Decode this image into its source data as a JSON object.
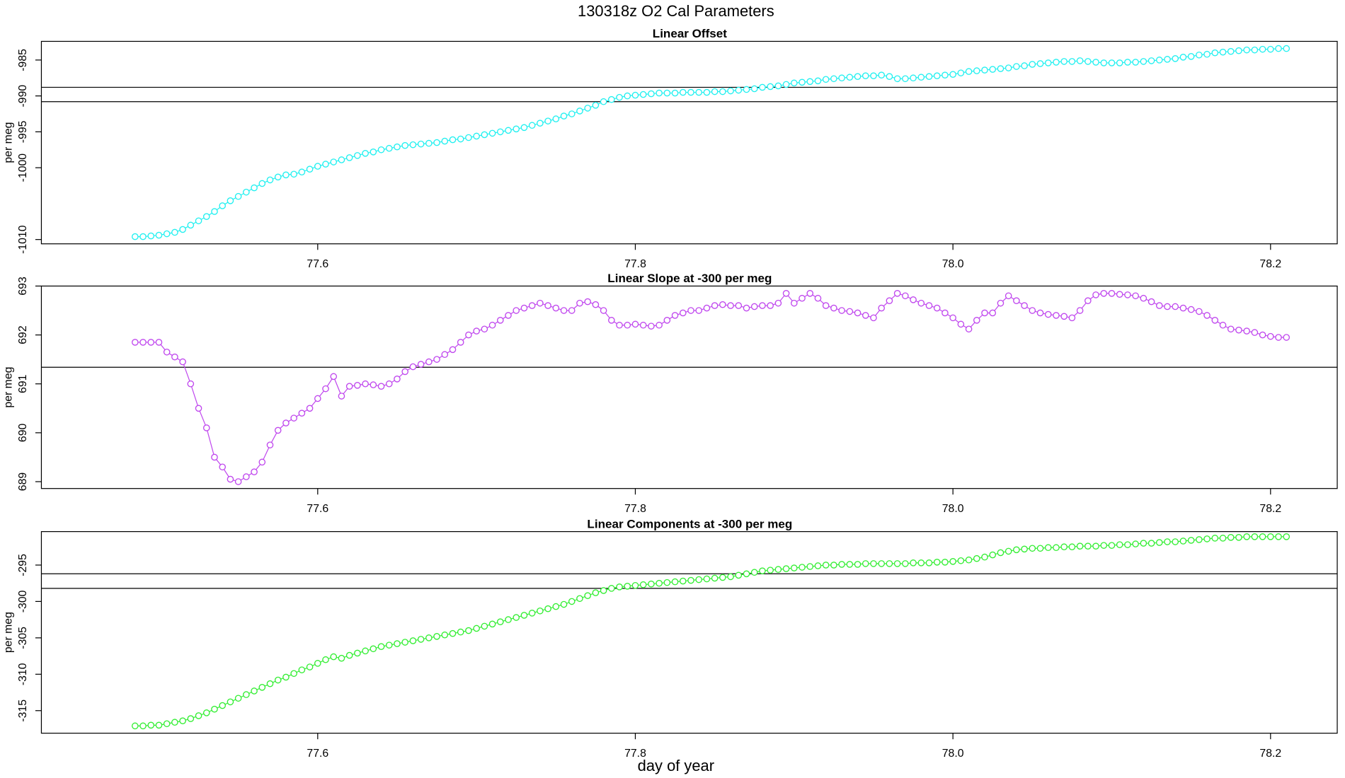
{
  "title": "130318z   O2 Cal Parameters",
  "xlabel": "day of year",
  "chart_data": [
    {
      "type": "scatter",
      "title": "Linear Offset",
      "ylabel": "per meg",
      "color": "#22f0f0",
      "xlim": [
        77.426,
        78.242
      ],
      "xticks": [
        77.6,
        77.8,
        {
          "value": 78,
          "label": "78.0"
        },
        78.2
      ],
      "ylim": [
        -1010.6,
        -982.4
      ],
      "yticks": [
        -985,
        -990,
        -995,
        -1000,
        -1010
      ],
      "hlines": [
        -988.8,
        -990.8
      ],
      "x": [
        77.485,
        77.49,
        77.495,
        77.5,
        77.505,
        77.51,
        77.515,
        77.52,
        77.525,
        77.53,
        77.535,
        77.54,
        77.545,
        77.55,
        77.555,
        77.56,
        77.565,
        77.57,
        77.575,
        77.58,
        77.585,
        77.59,
        77.595,
        77.6,
        77.605,
        77.61,
        77.615,
        77.62,
        77.625,
        77.63,
        77.635,
        77.64,
        77.645,
        77.65,
        77.655,
        77.66,
        77.665,
        77.67,
        77.675,
        77.68,
        77.685,
        77.69,
        77.695,
        77.7,
        77.705,
        77.71,
        77.715,
        77.72,
        77.725,
        77.73,
        77.735,
        77.74,
        77.745,
        77.75,
        77.755,
        77.76,
        77.765,
        77.77,
        77.775,
        77.78,
        77.785,
        77.79,
        77.795,
        77.8,
        77.805,
        77.81,
        77.815,
        77.82,
        77.825,
        77.83,
        77.835,
        77.84,
        77.845,
        77.85,
        77.855,
        77.86,
        77.865,
        77.87,
        77.875,
        77.88,
        77.885,
        77.89,
        77.895,
        77.9,
        77.905,
        77.91,
        77.915,
        77.92,
        77.925,
        77.93,
        77.935,
        77.94,
        77.945,
        77.95,
        77.955,
        77.96,
        77.965,
        77.97,
        77.975,
        77.98,
        77.985,
        77.99,
        77.995,
        78,
        78.005,
        78.01,
        78.015,
        78.02,
        78.025,
        78.03,
        78.035,
        78.04,
        78.045,
        78.05,
        78.055,
        78.06,
        78.065,
        78.07,
        78.075,
        78.08,
        78.085,
        78.09,
        78.095,
        78.1,
        78.105,
        78.11,
        78.115,
        78.12,
        78.125,
        78.13,
        78.135,
        78.14,
        78.145,
        78.15,
        78.155,
        78.16,
        78.165,
        78.17,
        78.175,
        78.18,
        78.185,
        78.19,
        78.195,
        78.2,
        78.205,
        78.21
      ],
      "values": [
        -1009.6,
        -1009.6,
        -1009.5,
        -1009.4,
        -1009.2,
        -1009.0,
        -1008.6,
        -1008.0,
        -1007.4,
        -1006.8,
        -1006.1,
        -1005.3,
        -1004.6,
        -1004.0,
        -1003.4,
        -1002.8,
        -1002.2,
        -1001.7,
        -1001.3,
        -1001.0,
        -1000.9,
        -1000.6,
        -1000.2,
        -999.8,
        -999.5,
        -999.2,
        -998.9,
        -998.6,
        -998.3,
        -998.0,
        -997.8,
        -997.5,
        -997.3,
        -997.1,
        -996.9,
        -996.8,
        -996.7,
        -996.6,
        -996.5,
        -996.3,
        -996.1,
        -996.0,
        -995.8,
        -995.6,
        -995.4,
        -995.2,
        -995.0,
        -994.8,
        -994.6,
        -994.4,
        -994.1,
        -993.8,
        -993.5,
        -993.2,
        -992.8,
        -992.5,
        -992.1,
        -991.7,
        -991.3,
        -990.8,
        -990.5,
        -990.2,
        -990.0,
        -989.9,
        -989.8,
        -989.7,
        -989.6,
        -989.6,
        -989.6,
        -989.5,
        -989.5,
        -989.5,
        -989.5,
        -989.4,
        -989.4,
        -989.3,
        -989.2,
        -989.1,
        -989.0,
        -988.8,
        -988.7,
        -988.6,
        -988.4,
        -988.2,
        -988.1,
        -988.0,
        -987.9,
        -987.7,
        -987.6,
        -987.5,
        -987.4,
        -987.3,
        -987.2,
        -987.2,
        -987.1,
        -987.3,
        -987.6,
        -987.6,
        -987.5,
        -987.4,
        -987.3,
        -987.2,
        -987.1,
        -987.0,
        -986.8,
        -986.6,
        -986.5,
        -986.4,
        -986.3,
        -986.2,
        -986.1,
        -985.9,
        -985.8,
        -985.6,
        -985.5,
        -985.4,
        -985.3,
        -985.2,
        -985.2,
        -985.1,
        -985.2,
        -985.3,
        -985.4,
        -985.4,
        -985.4,
        -985.3,
        -985.3,
        -985.2,
        -985.1,
        -985.0,
        -984.9,
        -984.8,
        -984.6,
        -984.5,
        -984.3,
        -984.2,
        -984.0,
        -983.9,
        -983.8,
        -983.7,
        -983.6,
        -983.6,
        -983.5,
        -983.5,
        -983.4,
        -983.4
      ]
    },
    {
      "type": "scatter",
      "title": "Linear Slope at -300 per meg",
      "ylabel": "per meg",
      "color": "#c048ee",
      "xlim": [
        77.426,
        78.242
      ],
      "xticks": [
        77.6,
        77.8,
        {
          "value": 78,
          "label": "78.0"
        },
        78.2
      ],
      "ylim": [
        688.86,
        693.0
      ],
      "yticks": [
        689,
        690,
        691,
        692,
        693
      ],
      "hlines": [
        691.34
      ],
      "x": [
        77.485,
        77.49,
        77.495,
        77.5,
        77.505,
        77.51,
        77.515,
        77.52,
        77.525,
        77.53,
        77.535,
        77.54,
        77.545,
        77.55,
        77.555,
        77.56,
        77.565,
        77.57,
        77.575,
        77.58,
        77.585,
        77.59,
        77.595,
        77.6,
        77.605,
        77.61,
        77.615,
        77.62,
        77.625,
        77.63,
        77.635,
        77.64,
        77.645,
        77.65,
        77.655,
        77.66,
        77.665,
        77.67,
        77.675,
        77.68,
        77.685,
        77.69,
        77.695,
        77.7,
        77.705,
        77.71,
        77.715,
        77.72,
        77.725,
        77.73,
        77.735,
        77.74,
        77.745,
        77.75,
        77.755,
        77.76,
        77.765,
        77.77,
        77.775,
        77.78,
        77.785,
        77.79,
        77.795,
        77.8,
        77.805,
        77.81,
        77.815,
        77.82,
        77.825,
        77.83,
        77.835,
        77.84,
        77.845,
        77.85,
        77.855,
        77.86,
        77.865,
        77.87,
        77.875,
        77.88,
        77.885,
        77.89,
        77.895,
        77.9,
        77.905,
        77.91,
        77.915,
        77.92,
        77.925,
        77.93,
        77.935,
        77.94,
        77.945,
        77.95,
        77.955,
        77.96,
        77.965,
        77.97,
        77.975,
        77.98,
        77.985,
        77.99,
        77.995,
        78,
        78.005,
        78.01,
        78.015,
        78.02,
        78.025,
        78.03,
        78.035,
        78.04,
        78.045,
        78.05,
        78.055,
        78.06,
        78.065,
        78.07,
        78.075,
        78.08,
        78.085,
        78.09,
        78.095,
        78.1,
        78.105,
        78.11,
        78.115,
        78.12,
        78.125,
        78.13,
        78.135,
        78.14,
        78.145,
        78.15,
        78.155,
        78.16,
        78.165,
        78.17,
        78.175,
        78.18,
        78.185,
        78.19,
        78.195,
        78.2,
        78.205,
        78.21
      ],
      "values": [
        691.85,
        691.85,
        691.85,
        691.85,
        691.65,
        691.55,
        691.45,
        691.0,
        690.5,
        690.1,
        689.5,
        689.3,
        689.05,
        689.0,
        689.1,
        689.2,
        689.4,
        689.75,
        690.05,
        690.2,
        690.3,
        690.4,
        690.5,
        690.7,
        690.9,
        691.15,
        690.75,
        690.95,
        690.97,
        691.0,
        690.98,
        690.95,
        691.0,
        691.1,
        691.25,
        691.35,
        691.4,
        691.45,
        691.5,
        691.6,
        691.7,
        691.85,
        692.0,
        692.08,
        692.12,
        692.2,
        692.3,
        692.4,
        692.5,
        692.55,
        692.6,
        692.65,
        692.6,
        692.55,
        692.5,
        692.5,
        692.65,
        692.68,
        692.62,
        692.5,
        692.3,
        692.2,
        692.2,
        692.22,
        692.2,
        692.18,
        692.2,
        692.3,
        692.4,
        692.45,
        692.5,
        692.5,
        692.55,
        692.6,
        692.62,
        692.6,
        692.6,
        692.55,
        692.58,
        692.6,
        692.6,
        692.65,
        692.85,
        692.65,
        692.75,
        692.85,
        692.75,
        692.6,
        692.55,
        692.5,
        692.48,
        692.45,
        692.4,
        692.35,
        692.55,
        692.7,
        692.85,
        692.8,
        692.72,
        692.65,
        692.6,
        692.55,
        692.45,
        692.35,
        692.22,
        692.12,
        692.3,
        692.45,
        692.45,
        692.65,
        692.8,
        692.7,
        692.6,
        692.5,
        692.45,
        692.42,
        692.4,
        692.38,
        692.35,
        692.5,
        692.7,
        692.82,
        692.85,
        692.85,
        692.83,
        692.82,
        692.8,
        692.75,
        692.68,
        692.6,
        692.58,
        692.58,
        692.55,
        692.52,
        692.48,
        692.4,
        692.3,
        692.2,
        692.12,
        692.1,
        692.08,
        692.05,
        692.0,
        691.97,
        691.95,
        691.95
      ]
    },
    {
      "type": "scatter",
      "title": "Linear Components at -300 per meg",
      "ylabel": "per meg",
      "color": "#33ee33",
      "xlim": [
        77.426,
        78.242
      ],
      "xticks": [
        77.6,
        77.8,
        {
          "value": 78,
          "label": "78.0"
        },
        78.2
      ],
      "ylim": [
        -318.1,
        -290.4
      ],
      "yticks": [
        -295,
        -300,
        -305,
        -310,
        -315
      ],
      "hlines": [
        -296.2,
        -298.2
      ],
      "x": [
        77.485,
        77.49,
        77.495,
        77.5,
        77.505,
        77.51,
        77.515,
        77.52,
        77.525,
        77.53,
        77.535,
        77.54,
        77.545,
        77.55,
        77.555,
        77.56,
        77.565,
        77.57,
        77.575,
        77.58,
        77.585,
        77.59,
        77.595,
        77.6,
        77.605,
        77.61,
        77.615,
        77.62,
        77.625,
        77.63,
        77.635,
        77.64,
        77.645,
        77.65,
        77.655,
        77.66,
        77.665,
        77.67,
        77.675,
        77.68,
        77.685,
        77.69,
        77.695,
        77.7,
        77.705,
        77.71,
        77.715,
        77.72,
        77.725,
        77.73,
        77.735,
        77.74,
        77.745,
        77.75,
        77.755,
        77.76,
        77.765,
        77.77,
        77.775,
        77.78,
        77.785,
        77.79,
        77.795,
        77.8,
        77.805,
        77.81,
        77.815,
        77.82,
        77.825,
        77.83,
        77.835,
        77.84,
        77.845,
        77.85,
        77.855,
        77.86,
        77.865,
        77.87,
        77.875,
        77.88,
        77.885,
        77.89,
        77.895,
        77.9,
        77.905,
        77.91,
        77.915,
        77.92,
        77.925,
        77.93,
        77.935,
        77.94,
        77.945,
        77.95,
        77.955,
        77.96,
        77.965,
        77.97,
        77.975,
        77.98,
        77.985,
        77.99,
        77.995,
        78,
        78.005,
        78.01,
        78.015,
        78.02,
        78.025,
        78.03,
        78.035,
        78.04,
        78.045,
        78.05,
        78.055,
        78.06,
        78.065,
        78.07,
        78.075,
        78.08,
        78.085,
        78.09,
        78.095,
        78.1,
        78.105,
        78.11,
        78.115,
        78.12,
        78.125,
        78.13,
        78.135,
        78.14,
        78.145,
        78.15,
        78.155,
        78.16,
        78.165,
        78.17,
        78.175,
        78.18,
        78.185,
        78.19,
        78.195,
        78.2,
        78.205,
        78.21
      ],
      "values": [
        -317.1,
        -317.1,
        -317.0,
        -317.0,
        -316.8,
        -316.6,
        -316.4,
        -316.1,
        -315.7,
        -315.3,
        -314.8,
        -314.3,
        -313.8,
        -313.3,
        -312.8,
        -312.3,
        -311.8,
        -311.3,
        -310.8,
        -310.4,
        -309.9,
        -309.4,
        -309.0,
        -308.5,
        -308.0,
        -307.6,
        -307.8,
        -307.4,
        -307.1,
        -306.8,
        -306.5,
        -306.2,
        -306.0,
        -305.8,
        -305.6,
        -305.4,
        -305.2,
        -305.0,
        -304.8,
        -304.6,
        -304.4,
        -304.2,
        -304.0,
        -303.7,
        -303.4,
        -303.1,
        -302.8,
        -302.5,
        -302.2,
        -301.9,
        -301.6,
        -301.3,
        -301.0,
        -300.7,
        -300.4,
        -300.0,
        -299.6,
        -299.2,
        -298.8,
        -298.5,
        -298.2,
        -298.0,
        -297.9,
        -297.8,
        -297.7,
        -297.6,
        -297.5,
        -297.4,
        -297.3,
        -297.2,
        -297.1,
        -297.0,
        -296.9,
        -296.8,
        -296.7,
        -296.6,
        -296.4,
        -296.2,
        -296.0,
        -295.8,
        -295.7,
        -295.6,
        -295.5,
        -295.4,
        -295.3,
        -295.2,
        -295.1,
        -295.0,
        -295.0,
        -294.9,
        -294.9,
        -294.9,
        -294.8,
        -294.8,
        -294.8,
        -294.8,
        -294.8,
        -294.8,
        -294.7,
        -294.7,
        -294.7,
        -294.6,
        -294.6,
        -294.5,
        -294.4,
        -294.3,
        -294.1,
        -293.9,
        -293.6,
        -293.3,
        -293.1,
        -292.9,
        -292.8,
        -292.7,
        -292.7,
        -292.6,
        -292.6,
        -292.5,
        -292.5,
        -292.4,
        -292.4,
        -292.4,
        -292.3,
        -292.3,
        -292.2,
        -292.2,
        -292.1,
        -292.0,
        -292.0,
        -291.9,
        -291.8,
        -291.8,
        -291.7,
        -291.6,
        -291.5,
        -291.4,
        -291.3,
        -291.3,
        -291.2,
        -291.2,
        -291.1,
        -291.1,
        -291.1,
        -291.1,
        -291.1,
        -291.1
      ]
    }
  ]
}
